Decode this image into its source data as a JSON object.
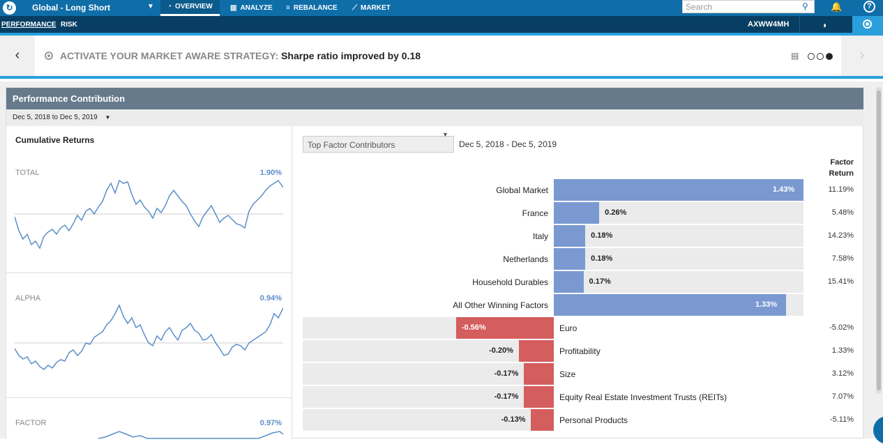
{
  "nav": {
    "portfolio": "Global - Long Short",
    "tabs": [
      {
        "label": "OVERVIEW",
        "icon": "dashboard-icon"
      },
      {
        "label": "ANALYZE",
        "icon": "bar-chart-icon"
      },
      {
        "label": "REBALANCE",
        "icon": "sliders-icon"
      },
      {
        "label": "MARKET",
        "icon": "line-chart-icon"
      }
    ],
    "search_placeholder": "Search"
  },
  "subnav": {
    "tabs": [
      "PERFORMANCE",
      "RISK"
    ],
    "account": "AXWW4MH"
  },
  "banner": {
    "prefix": "ACTIVATE YOUR MARKET AWARE STRATEGY:",
    "message": "Sharpe ratio improved by 0.18",
    "page_count": 3,
    "current_page": 3
  },
  "panel": {
    "title": "Performance Contribution",
    "date_range": "Dec 5, 2018 to Dec 5, 2019"
  },
  "cumulative": {
    "title": "Cumulative Returns",
    "charts": [
      {
        "label": "TOTAL",
        "value": "1.90%"
      },
      {
        "label": "ALPHA",
        "value": "0.94%"
      },
      {
        "label": "FACTOR",
        "value": "0.97%"
      }
    ]
  },
  "contributors": {
    "selector": "Top Factor Contributors",
    "range": "Dec 5, 2018 - Dec 5, 2019",
    "factor_return_header": "Factor Return",
    "positive": [
      {
        "name": "Global Market",
        "value": "1.43%",
        "contribution": 1.43,
        "factor_return": "11.19%"
      },
      {
        "name": "France",
        "value": "0.26%",
        "contribution": 0.26,
        "factor_return": "5.48%"
      },
      {
        "name": "Italy",
        "value": "0.18%",
        "contribution": 0.18,
        "factor_return": "14.23%"
      },
      {
        "name": "Netherlands",
        "value": "0.18%",
        "contribution": 0.18,
        "factor_return": "7.58%"
      },
      {
        "name": "Household Durables",
        "value": "0.17%",
        "contribution": 0.17,
        "factor_return": "15.41%"
      },
      {
        "name": "All Other Winning Factors",
        "value": "1.33%",
        "contribution": 1.33,
        "factor_return": ""
      }
    ],
    "negative": [
      {
        "name": "Euro",
        "value": "-0.56%",
        "contribution": -0.56,
        "factor_return": "-5.02%"
      },
      {
        "name": "Profitability",
        "value": "-0.20%",
        "contribution": -0.2,
        "factor_return": "1.33%"
      },
      {
        "name": "Size",
        "value": "-0.17%",
        "contribution": -0.17,
        "factor_return": "3.12%"
      },
      {
        "name": "Equity Real Estate Investment Trusts (REITs)",
        "value": "-0.17%",
        "contribution": -0.17,
        "factor_return": "7.07%"
      },
      {
        "name": "Personal Products",
        "value": "-0.13%",
        "contribution": -0.13,
        "factor_return": "-5.11%"
      }
    ]
  },
  "colors": {
    "positive": "#7a99d1",
    "negative": "#d45d5d",
    "line": "#5b8ec9"
  }
}
